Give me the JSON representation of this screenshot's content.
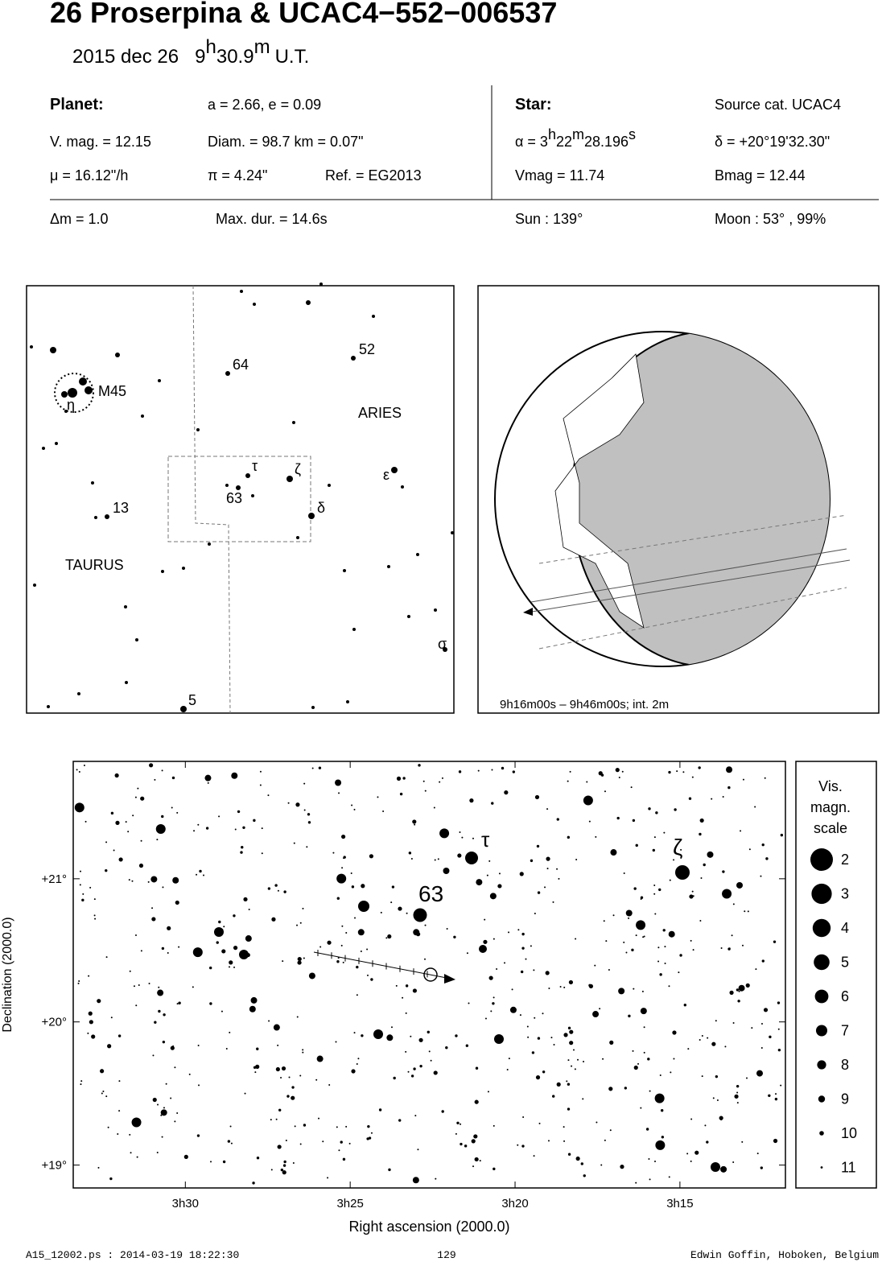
{
  "header": {
    "title": "26 Proserpina  &  UCAC4−552−006537",
    "date": "2015 dec 26",
    "time": [
      "9",
      "h",
      "30.9",
      "m",
      "U.T."
    ]
  },
  "info": {
    "planet_label": "Planet:",
    "orbit": "a = 2.66, e = 0.09",
    "vmag": "V. mag. = 12.15",
    "diam": "Diam. = 98.7 km = 0.07\"",
    "mu": "μ =  16.12\"/h",
    "parallax": "π =  4.24\"",
    "ref": "Ref. = EG2013",
    "star_label": "Star:",
    "source": "Source cat.  UCAC4",
    "alpha": [
      "α =  3",
      "h",
      "22",
      "m",
      "28.196",
      "s"
    ],
    "delta": "δ = +20°19'32.30\"",
    "star_vmag": "Vmag = 11.74",
    "bmag": "Bmag = 12.44",
    "dm": "Δm = 1.0",
    "maxdur": "Max. dur. = 14.6s",
    "sun": "Sun : 139°",
    "moon": "Moon :  53° , 99%"
  },
  "finder": {
    "labels": [
      "64",
      "52",
      "M45",
      "η",
      "ARIES",
      "τ",
      "ζ",
      "63",
      "ε",
      "δ",
      "13",
      "TAURUS",
      "σ",
      "5"
    ]
  },
  "globe": {
    "caption": "9h16m00s –  9h46m00s; int.  2m"
  },
  "chart_data": {
    "type": "scatter",
    "xlabel": "Right ascension (2000.0)",
    "ylabel": "Declination (2000.0)",
    "xlim": [
      33.4,
      11.8
    ],
    "xticks": [
      {
        "value": 30,
        "label": "3h30"
      },
      {
        "value": 25,
        "label": "3h25"
      },
      {
        "value": 20,
        "label": "3h20"
      },
      {
        "value": 15,
        "label": "3h15"
      }
    ],
    "ylim": [
      18.84,
      21.82
    ],
    "yticks": [
      {
        "value": 21,
        "label": "+21°"
      },
      {
        "value": 20,
        "label": "+20°"
      },
      {
        "value": 19,
        "label": "+19°"
      }
    ],
    "annotations": [
      "τ",
      "63",
      "ζ"
    ],
    "legend": {
      "title": [
        "Vis.",
        "magn.",
        "scale"
      ],
      "magnitudes": [
        2,
        3,
        4,
        5,
        6,
        7,
        8,
        9,
        10,
        11
      ]
    }
  },
  "footer": {
    "left": "A15_12002.ps : 2014-03-19 18:22:30",
    "center": "129",
    "right": "Edwin Goffin, Hoboken, Belgium"
  }
}
